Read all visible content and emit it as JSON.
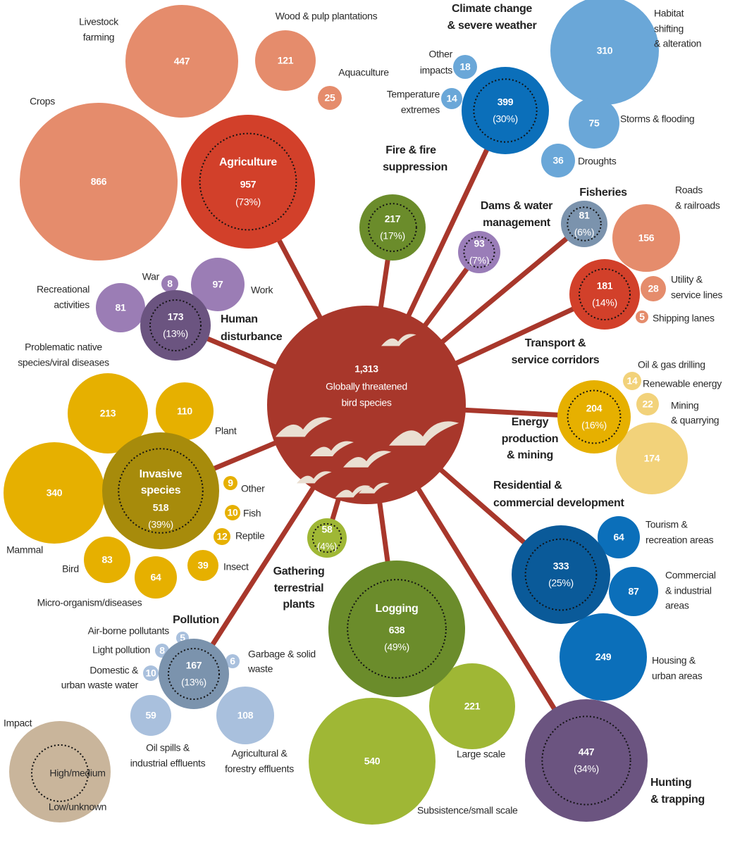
{
  "center": {
    "value": "1,313",
    "label": [
      "Globally threatened",
      "bird species"
    ]
  },
  "groups": [
    {
      "name": [
        "Agriculture"
      ],
      "value": 957,
      "percent": "(73%)",
      "items": [
        {
          "name": [
            "Crops"
          ],
          "value": 866
        },
        {
          "name": [
            "Livestock",
            "farming"
          ],
          "value": 447
        },
        {
          "name": [
            "Wood & pulp plantations"
          ],
          "value": 121
        },
        {
          "name": [
            "Aquaculture"
          ],
          "value": 25
        }
      ]
    },
    {
      "name": [
        "Fire & fire",
        "suppression"
      ],
      "value": 217,
      "percent": "(17%)",
      "items": []
    },
    {
      "name": [
        "Climate change",
        "& severe weather"
      ],
      "value": 399,
      "percent": "(30%)",
      "items": [
        {
          "name": [
            "Habitat",
            "shifting",
            "& alteration"
          ],
          "value": 310
        },
        {
          "name": [
            "Other",
            "impacts"
          ],
          "value": 18
        },
        {
          "name": [
            "Temperature",
            "extremes"
          ],
          "value": 14
        },
        {
          "name": [
            "Storms & flooding"
          ],
          "value": 75
        },
        {
          "name": [
            "Droughts"
          ],
          "value": 36
        }
      ]
    },
    {
      "name": [
        "Dams & water",
        "management"
      ],
      "value": 93,
      "percent": "(7%)",
      "items": []
    },
    {
      "name": [
        "Fisheries"
      ],
      "value": 81,
      "percent": "(6%)",
      "items": []
    },
    {
      "name": [
        "Transport &",
        "service corridors"
      ],
      "value": 181,
      "percent": "(14%)",
      "items": [
        {
          "name": [
            "Roads",
            "& railroads"
          ],
          "value": 156
        },
        {
          "name": [
            "Utility &",
            "service lines"
          ],
          "value": 28
        },
        {
          "name": [
            "Shipping lanes"
          ],
          "value": 5
        }
      ]
    },
    {
      "name": [
        "Energy",
        "production",
        "& mining"
      ],
      "value": 204,
      "percent": "(16%)",
      "items": [
        {
          "name": [
            "Oil & gas drilling"
          ],
          "value": 14
        },
        {
          "name": [
            "Renewable energy"
          ],
          "value": 22
        },
        {
          "name": [
            "Mining",
            "& quarrying"
          ],
          "value": 174
        }
      ]
    },
    {
      "name": [
        "Residential &",
        "commercial development"
      ],
      "value": 333,
      "percent": "(25%)",
      "items": [
        {
          "name": [
            "Tourism &",
            "recreation areas"
          ],
          "value": 64
        },
        {
          "name": [
            "Commercial",
            "& industrial",
            "areas"
          ],
          "value": 87
        },
        {
          "name": [
            "Housing &",
            "urban areas"
          ],
          "value": 249
        }
      ]
    },
    {
      "name": [
        "Hunting",
        "& trapping"
      ],
      "value": 447,
      "percent": "(34%)",
      "items": []
    },
    {
      "name": [
        "Logging"
      ],
      "value": 638,
      "percent": "(49%)",
      "items": [
        {
          "name": [
            "Large scale"
          ],
          "value": 221
        },
        {
          "name": [
            "Subsistence/small scale"
          ],
          "value": 540
        }
      ]
    },
    {
      "name": [
        "Gathering",
        "terrestrial",
        "plants"
      ],
      "value": 58,
      "percent": "(4%)",
      "items": []
    },
    {
      "name": [
        "Pollution"
      ],
      "value": 167,
      "percent": "(13%)",
      "items": [
        {
          "name": [
            "Air-borne pollutants"
          ],
          "value": 5
        },
        {
          "name": [
            "Light pollution"
          ],
          "value": 8
        },
        {
          "name": [
            "Domestic &",
            "urban waste water"
          ],
          "value": 10
        },
        {
          "name": [
            "Garbage & solid",
            "waste"
          ],
          "value": 6
        },
        {
          "name": [
            "Oil spills &",
            "industrial effluents"
          ],
          "value": 59
        },
        {
          "name": [
            "Agricultural &",
            "forestry effluents"
          ],
          "value": 108
        }
      ]
    },
    {
      "name": [
        "Invasive",
        "species"
      ],
      "value": 518,
      "percent": "(39%)",
      "items": [
        {
          "name": [
            "Problematic native",
            "species/viral diseases"
          ],
          "value": 213
        },
        {
          "name": [
            "Plant"
          ],
          "value": 110
        },
        {
          "name": [
            "Mammal"
          ],
          "value": 340
        },
        {
          "name": [
            "Other"
          ],
          "value": 9
        },
        {
          "name": [
            "Fish"
          ],
          "value": 10
        },
        {
          "name": [
            "Reptile"
          ],
          "value": 12
        },
        {
          "name": [
            "Insect"
          ],
          "value": 39
        },
        {
          "name": [
            "Bird"
          ],
          "value": 83
        },
        {
          "name": [
            "Micro-organism/diseases"
          ],
          "value": 64
        }
      ]
    },
    {
      "name": [
        "Human",
        "disturbance"
      ],
      "value": 173,
      "percent": "(13%)",
      "items": [
        {
          "name": [
            "Recreational",
            "activities"
          ],
          "value": 81
        },
        {
          "name": [
            "War"
          ],
          "value": 8
        },
        {
          "name": [
            "Work"
          ],
          "value": 97
        }
      ]
    }
  ],
  "legend": {
    "title": "Impact",
    "high": "High/medium",
    "low": "Low/unknown"
  }
}
